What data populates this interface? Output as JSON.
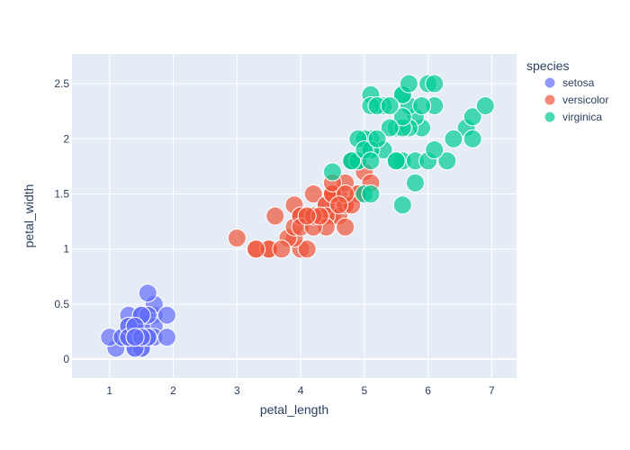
{
  "chart_data": {
    "type": "scatter",
    "title": "",
    "xlabel": "petal_length",
    "ylabel": "petal_width",
    "xlim": [
      0.41,
      7.39
    ],
    "ylim": [
      -0.17,
      2.77
    ],
    "xticks": [
      1,
      2,
      3,
      4,
      5,
      6,
      7
    ],
    "yticks": [
      0,
      0.5,
      1,
      1.5,
      2,
      2.5
    ],
    "xtick_labels": [
      "1",
      "2",
      "3",
      "4",
      "5",
      "6",
      "7"
    ],
    "ytick_labels": [
      "0",
      "0.5",
      "1",
      "1.5",
      "2",
      "2.5"
    ],
    "grid": true,
    "plot_background": "#E5ECF6",
    "legend": {
      "title": "species",
      "placement": "top-right"
    },
    "series": [
      {
        "name": "setosa",
        "color": "#636EFA",
        "points": [
          [
            1.4,
            0.2
          ],
          [
            1.4,
            0.2
          ],
          [
            1.3,
            0.2
          ],
          [
            1.5,
            0.2
          ],
          [
            1.4,
            0.2
          ],
          [
            1.7,
            0.4
          ],
          [
            1.4,
            0.3
          ],
          [
            1.5,
            0.2
          ],
          [
            1.4,
            0.2
          ],
          [
            1.5,
            0.1
          ],
          [
            1.5,
            0.2
          ],
          [
            1.6,
            0.2
          ],
          [
            1.4,
            0.1
          ],
          [
            1.1,
            0.1
          ],
          [
            1.2,
            0.2
          ],
          [
            1.5,
            0.4
          ],
          [
            1.3,
            0.4
          ],
          [
            1.4,
            0.3
          ],
          [
            1.7,
            0.3
          ],
          [
            1.5,
            0.3
          ],
          [
            1.7,
            0.2
          ],
          [
            1.5,
            0.4
          ],
          [
            1.0,
            0.2
          ],
          [
            1.7,
            0.5
          ],
          [
            1.9,
            0.2
          ],
          [
            1.6,
            0.2
          ],
          [
            1.6,
            0.4
          ],
          [
            1.5,
            0.2
          ],
          [
            1.4,
            0.2
          ],
          [
            1.6,
            0.2
          ],
          [
            1.6,
            0.2
          ],
          [
            1.5,
            0.4
          ],
          [
            1.5,
            0.1
          ],
          [
            1.4,
            0.2
          ],
          [
            1.5,
            0.2
          ],
          [
            1.2,
            0.2
          ],
          [
            1.3,
            0.2
          ],
          [
            1.4,
            0.1
          ],
          [
            1.3,
            0.2
          ],
          [
            1.5,
            0.2
          ],
          [
            1.3,
            0.3
          ],
          [
            1.3,
            0.3
          ],
          [
            1.3,
            0.2
          ],
          [
            1.6,
            0.6
          ],
          [
            1.9,
            0.4
          ],
          [
            1.4,
            0.3
          ],
          [
            1.6,
            0.2
          ],
          [
            1.4,
            0.2
          ],
          [
            1.5,
            0.2
          ],
          [
            1.4,
            0.2
          ]
        ]
      },
      {
        "name": "versicolor",
        "color": "#EF553B",
        "points": [
          [
            4.7,
            1.4
          ],
          [
            4.5,
            1.5
          ],
          [
            4.9,
            1.5
          ],
          [
            4.0,
            1.3
          ],
          [
            4.6,
            1.5
          ],
          [
            4.5,
            1.3
          ],
          [
            4.7,
            1.6
          ],
          [
            3.3,
            1.0
          ],
          [
            4.6,
            1.3
          ],
          [
            3.9,
            1.4
          ],
          [
            3.5,
            1.0
          ],
          [
            4.2,
            1.5
          ],
          [
            4.0,
            1.0
          ],
          [
            4.7,
            1.4
          ],
          [
            3.6,
            1.3
          ],
          [
            4.4,
            1.4
          ],
          [
            4.5,
            1.5
          ],
          [
            4.1,
            1.0
          ],
          [
            4.5,
            1.5
          ],
          [
            3.9,
            1.1
          ],
          [
            4.8,
            1.8
          ],
          [
            4.0,
            1.3
          ],
          [
            4.9,
            1.5
          ],
          [
            4.7,
            1.2
          ],
          [
            4.3,
            1.3
          ],
          [
            4.4,
            1.4
          ],
          [
            4.8,
            1.4
          ],
          [
            5.0,
            1.7
          ],
          [
            4.5,
            1.5
          ],
          [
            3.5,
            1.0
          ],
          [
            3.8,
            1.1
          ],
          [
            3.7,
            1.0
          ],
          [
            3.9,
            1.2
          ],
          [
            5.1,
            1.6
          ],
          [
            4.5,
            1.5
          ],
          [
            4.5,
            1.6
          ],
          [
            4.7,
            1.5
          ],
          [
            4.4,
            1.3
          ],
          [
            4.1,
            1.3
          ],
          [
            4.0,
            1.3
          ],
          [
            4.4,
            1.2
          ],
          [
            4.6,
            1.4
          ],
          [
            4.0,
            1.2
          ],
          [
            3.3,
            1.0
          ],
          [
            4.2,
            1.3
          ],
          [
            4.2,
            1.2
          ],
          [
            4.2,
            1.3
          ],
          [
            4.3,
            1.3
          ],
          [
            3.0,
            1.1
          ],
          [
            4.1,
            1.3
          ]
        ]
      },
      {
        "name": "virginica",
        "color": "#00CC96",
        "points": [
          [
            6.0,
            2.5
          ],
          [
            5.1,
            1.9
          ],
          [
            5.9,
            2.1
          ],
          [
            5.6,
            1.8
          ],
          [
            5.8,
            2.2
          ],
          [
            6.6,
            2.1
          ],
          [
            4.5,
            1.7
          ],
          [
            6.3,
            1.8
          ],
          [
            5.8,
            1.8
          ],
          [
            6.1,
            2.5
          ],
          [
            5.1,
            2.0
          ],
          [
            5.3,
            1.9
          ],
          [
            5.5,
            2.1
          ],
          [
            5.0,
            2.0
          ],
          [
            5.1,
            2.4
          ],
          [
            5.3,
            2.3
          ],
          [
            5.5,
            1.8
          ],
          [
            6.7,
            2.2
          ],
          [
            6.9,
            2.3
          ],
          [
            5.0,
            1.5
          ],
          [
            5.7,
            2.3
          ],
          [
            4.9,
            2.0
          ],
          [
            6.7,
            2.0
          ],
          [
            4.9,
            1.8
          ],
          [
            5.7,
            2.1
          ],
          [
            6.0,
            1.8
          ],
          [
            4.8,
            1.8
          ],
          [
            4.9,
            1.8
          ],
          [
            5.6,
            2.1
          ],
          [
            5.8,
            1.6
          ],
          [
            6.1,
            1.9
          ],
          [
            6.4,
            2.0
          ],
          [
            5.6,
            2.2
          ],
          [
            5.1,
            1.5
          ],
          [
            5.6,
            1.4
          ],
          [
            6.1,
            2.3
          ],
          [
            5.6,
            2.4
          ],
          [
            5.5,
            1.8
          ],
          [
            4.8,
            1.8
          ],
          [
            5.4,
            2.1
          ],
          [
            5.6,
            2.4
          ],
          [
            5.1,
            2.3
          ],
          [
            5.1,
            1.9
          ],
          [
            5.9,
            2.3
          ],
          [
            5.7,
            2.5
          ],
          [
            5.2,
            2.3
          ],
          [
            5.0,
            1.9
          ],
          [
            5.2,
            2.0
          ],
          [
            5.4,
            2.3
          ],
          [
            5.1,
            1.8
          ]
        ]
      }
    ]
  }
}
